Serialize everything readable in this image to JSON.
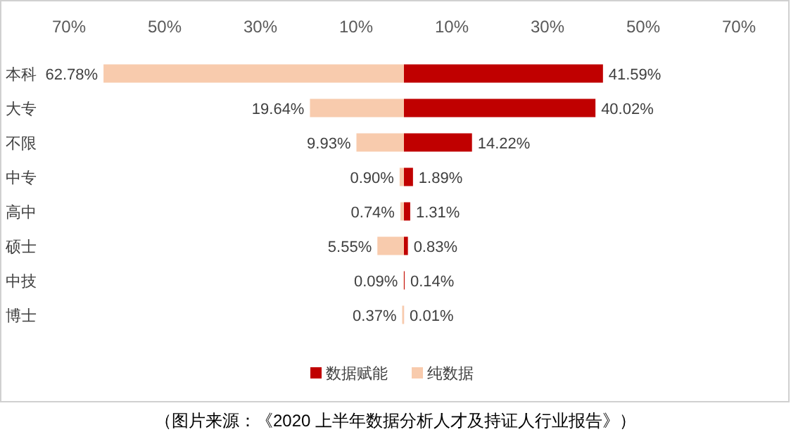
{
  "chart_data": [
    {
      "type": "bar",
      "orientation": "horizontal",
      "categories": [
        "本科",
        "大专",
        "不限",
        "中专",
        "高中",
        "硕士",
        "中技",
        "博士"
      ],
      "xlim": [
        70,
        0
      ],
      "xticks": [
        {
          "value": 70,
          "label": "70%"
        },
        {
          "value": 50,
          "label": "50%"
        },
        {
          "value": 30,
          "label": "30%"
        },
        {
          "value": 10,
          "label": "10%"
        }
      ],
      "series": [
        {
          "name": "纯数据",
          "color": "#f8cbad",
          "values": [
            62.78,
            19.64,
            9.93,
            0.9,
            0.74,
            5.55,
            0.09,
            0.37
          ],
          "value_labels": [
            "62.78%",
            "19.64%",
            "9.93%",
            "0.90%",
            "0.74%",
            "5.55%",
            "0.09%",
            "0.37%"
          ]
        }
      ],
      "legend": "bottom",
      "annotations": [
        "（图片来源：《2020 上半年数据分析人才及持证人行业报告》）"
      ]
    },
    {
      "type": "bar",
      "orientation": "horizontal",
      "categories": [
        null,
        null,
        null,
        null,
        null,
        null,
        null,
        null
      ],
      "xlim": [
        0,
        70
      ],
      "xticks": [
        {
          "value": 10,
          "label": "10%"
        },
        {
          "value": 30,
          "label": "30%"
        },
        {
          "value": 50,
          "label": "50%"
        },
        {
          "value": 70,
          "label": "70%"
        }
      ],
      "series": [
        {
          "name": "数据赋能",
          "color": "#c00000",
          "values": [
            41.59,
            40.02,
            14.22,
            1.89,
            1.31,
            0.83,
            0.14,
            0.01
          ],
          "value_labels": [
            "41.59%",
            "40.02%",
            "14.22%",
            "1.89%",
            "1.31%",
            "0.83%",
            "0.14%",
            "0.01%"
          ]
        }
      ],
      "legend": "bottom"
    }
  ]
}
